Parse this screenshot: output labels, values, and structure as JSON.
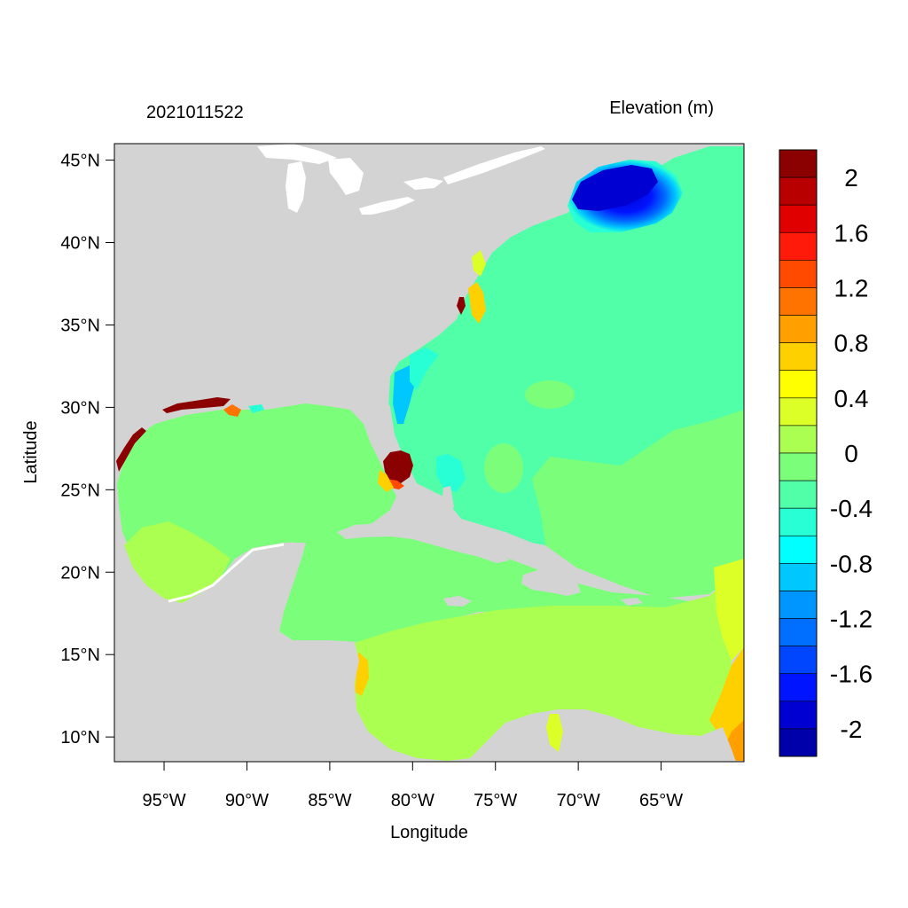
{
  "header": {
    "timestamp": "2021011522",
    "variable_title": "Elevation (m)"
  },
  "axes": {
    "xlabel": "Longitude",
    "ylabel": "Latitude",
    "lon_range": [
      -98,
      -60
    ],
    "lat_range": [
      8.5,
      46
    ],
    "x_ticks": [
      {
        "value": -95,
        "label": "95°W"
      },
      {
        "value": -90,
        "label": "90°W"
      },
      {
        "value": -85,
        "label": "85°W"
      },
      {
        "value": -80,
        "label": "80°W"
      },
      {
        "value": -75,
        "label": "75°W"
      },
      {
        "value": -70,
        "label": "70°W"
      },
      {
        "value": -65,
        "label": "65°W"
      }
    ],
    "y_ticks": [
      {
        "value": 10,
        "label": "10°N"
      },
      {
        "value": 15,
        "label": "15°N"
      },
      {
        "value": 20,
        "label": "20°N"
      },
      {
        "value": 25,
        "label": "25°N"
      },
      {
        "value": 30,
        "label": "30°N"
      },
      {
        "value": 35,
        "label": "35°N"
      },
      {
        "value": 40,
        "label": "40°N"
      },
      {
        "value": 45,
        "label": "45°N"
      }
    ]
  },
  "colorbar": {
    "colors_top_to_bottom": [
      "#8b0000",
      "#b80000",
      "#e00000",
      "#ff1a0a",
      "#ff4a00",
      "#ff7300",
      "#ffa000",
      "#ffd000",
      "#ffff00",
      "#dcff28",
      "#aaff50",
      "#7bff7b",
      "#50ffa8",
      "#28ffd4",
      "#00ffff",
      "#00c8ff",
      "#0096ff",
      "#006eff",
      "#0046ff",
      "#0014ff",
      "#0000d2",
      "#0000aa"
    ],
    "labels": [
      {
        "value": "2",
        "at_boundary": 1
      },
      {
        "value": "1.6",
        "at_boundary": 3
      },
      {
        "value": "1.2",
        "at_boundary": 5
      },
      {
        "value": "0.8",
        "at_boundary": 7
      },
      {
        "value": "0.4",
        "at_boundary": 9
      },
      {
        "value": "0",
        "at_boundary": 11
      },
      {
        "value": "-0.4",
        "at_boundary": 13
      },
      {
        "value": "-0.8",
        "at_boundary": 15
      },
      {
        "value": "-1.2",
        "at_boundary": 17
      },
      {
        "value": "-1.6",
        "at_boundary": 19
      },
      {
        "value": "-2",
        "at_boundary": 21
      }
    ]
  },
  "colors": {
    "land": "#d3d3d3",
    "ocean_atlantic": "#50ffa8",
    "ocean_gulf": "#7bff7b",
    "ocean_caribbean_south": "#aaff50",
    "gulf_of_maine_low": "#0014ff",
    "florida_high": "#8b0000"
  }
}
